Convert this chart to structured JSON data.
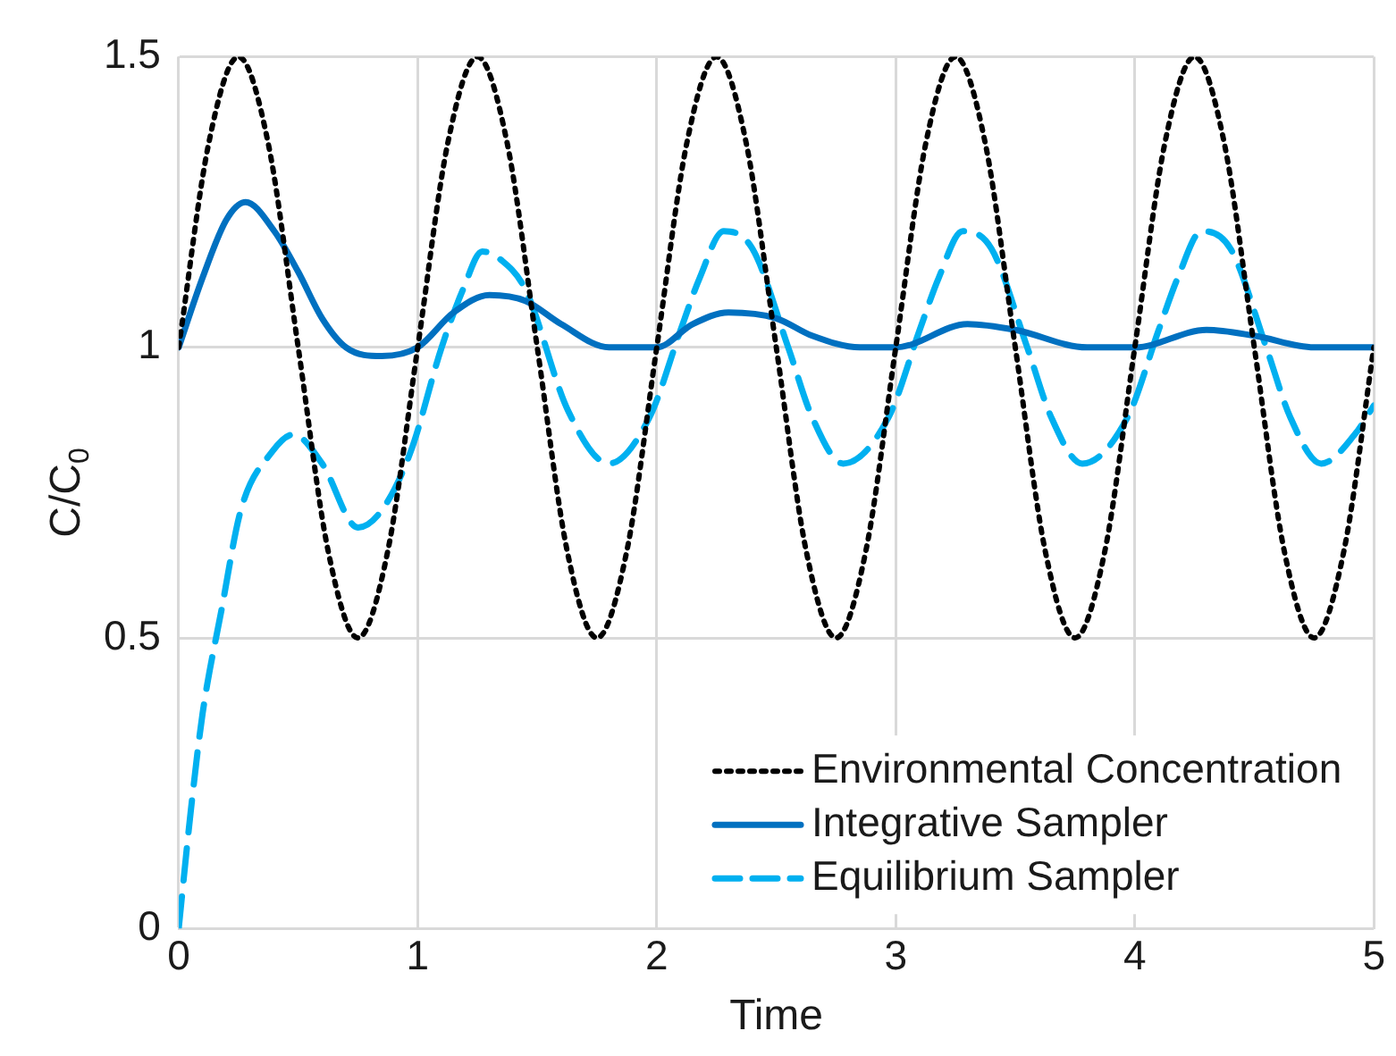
{
  "chart_data": {
    "type": "line",
    "xlabel": "Time",
    "ylabel": "C/C$_{0}$",
    "xlim": [
      0,
      5
    ],
    "xticks": [
      0,
      1,
      2,
      3,
      4,
      5
    ],
    "ylim": [
      0,
      1.5
    ],
    "yticks": [
      0,
      0.5,
      1,
      1.5
    ],
    "grid": true,
    "legend": "bottom right",
    "marker": "none",
    "series": [
      {
        "name": "Environmental Concentration",
        "color": "#000000",
        "line_style": "dotted",
        "x": [
          0,
          0.125,
          0.25,
          0.375,
          0.5,
          0.625,
          0.75,
          0.875,
          1,
          1.125,
          1.25,
          1.375,
          1.5,
          1.625,
          1.75,
          1.875,
          2,
          2.125,
          2.25,
          2.375,
          2.5,
          2.625,
          2.75,
          2.875,
          3,
          3.125,
          3.25,
          3.375,
          3.5,
          3.625,
          3.75,
          3.875,
          4,
          4.125,
          4.25,
          4.375,
          4.5,
          4.625,
          4.75,
          4.875,
          5
        ],
        "values": [
          1,
          1.35,
          1.5,
          1.35,
          1,
          0.65,
          0.5,
          0.65,
          1,
          1.35,
          1.5,
          1.35,
          1,
          0.65,
          0.5,
          0.65,
          1,
          1.35,
          1.5,
          1.35,
          1,
          0.65,
          0.5,
          0.65,
          1,
          1.35,
          1.5,
          1.35,
          1,
          0.65,
          0.5,
          0.65,
          1,
          1.35,
          1.5,
          1.35,
          1,
          0.65,
          0.5,
          0.65,
          1
        ]
      },
      {
        "name": "Integrative Sampler",
        "color": "#0070c0",
        "line_style": "solid",
        "x": [
          0,
          0.1,
          0.2,
          0.28,
          0.4,
          0.5,
          0.6,
          0.7,
          0.85,
          1,
          1.15,
          1.3,
          1.45,
          1.6,
          1.8,
          2,
          2.15,
          2.3,
          2.5,
          2.65,
          2.85,
          3,
          3.3,
          3.5,
          3.8,
          4,
          4.3,
          4.5,
          4.75,
          5
        ],
        "values": [
          1,
          1.12,
          1.22,
          1.25,
          1.2,
          1.13,
          1.05,
          1,
          0.985,
          1,
          1.06,
          1.09,
          1.08,
          1.04,
          1,
          1,
          1.04,
          1.06,
          1.05,
          1.02,
          1,
          1,
          1.04,
          1.03,
          1,
          1,
          1.03,
          1.02,
          1,
          1
        ]
      },
      {
        "name": "Equilibrium Sampler",
        "color": "#00b0f0",
        "line_style": "dashed",
        "x": [
          0,
          0.05,
          0.1,
          0.18,
          0.26,
          0.39,
          0.48,
          0.6,
          0.75,
          0.85,
          0.97,
          1.1,
          1.19,
          1.27,
          1.35,
          1.45,
          1.63,
          1.8,
          1.97,
          2.1,
          2.18,
          2.28,
          2.4,
          2.55,
          2.65,
          2.78,
          2.97,
          3.1,
          3.18,
          3.28,
          3.4,
          3.55,
          3.65,
          3.78,
          3.97,
          4.1,
          4.18,
          4.28,
          4.4,
          4.55,
          4.65,
          4.78,
          4.92,
          5
        ],
        "values": [
          0,
          0.2,
          0.37,
          0.55,
          0.72,
          0.82,
          0.85,
          0.8,
          0.69,
          0.72,
          0.82,
          1,
          1.1,
          1.165,
          1.15,
          1.1,
          0.89,
          0.8,
          0.88,
          1.03,
          1.12,
          1.2,
          1.17,
          1,
          0.88,
          0.8,
          0.88,
          1.03,
          1.12,
          1.2,
          1.17,
          1,
          0.88,
          0.8,
          0.88,
          1.03,
          1.12,
          1.2,
          1.17,
          1,
          0.88,
          0.8,
          0.85,
          0.9
        ]
      }
    ]
  }
}
